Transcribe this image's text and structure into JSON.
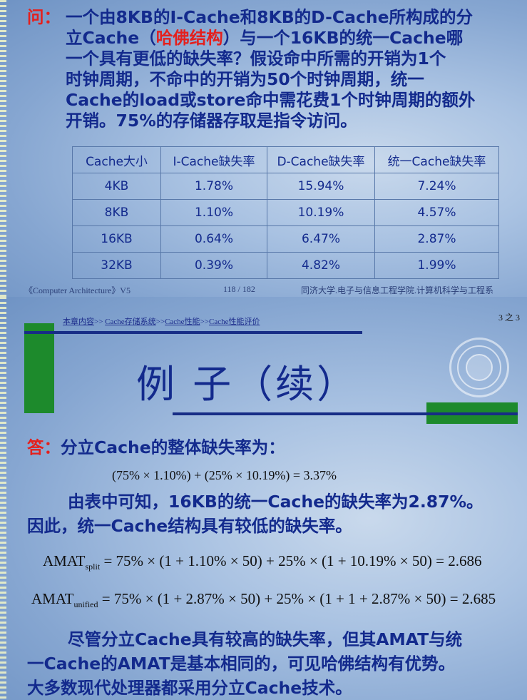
{
  "slide1": {
    "question_mark": "问：",
    "question_lines": [
      "一个由8KB的I-Cache和8KB的D-Cache所构成的分",
      "立Cache（",
      "哈佛结构",
      "）与一个16KB的统一Cache哪",
      "一个具有更低的缺失率？假设命中所需的开销为1个",
      "时钟周期，不命中的开销为50个时钟周期，统一",
      "Cache的load或store命中需花费1个时钟周期的额外",
      "开销。75%的存储器存取是指令访问。"
    ],
    "table": {
      "headers": [
        "Cache大小",
        "I-Cache缺失率",
        "D-Cache缺失率",
        "统一Cache缺失率"
      ],
      "rows": [
        [
          "4KB",
          "1.78%",
          "15.94%",
          "7.24%"
        ],
        [
          "8KB",
          "1.10%",
          "10.19%",
          "4.57%"
        ],
        [
          "16KB",
          "0.64%",
          "6.47%",
          "2.87%"
        ],
        [
          "32KB",
          "0.39%",
          "4.82%",
          "1.99%"
        ]
      ]
    },
    "footer": {
      "left": "《Computer Architecture》V5",
      "center": "118 / 182",
      "right": "同济大学.电子与信息工程学院.计算机科学与工程系"
    }
  },
  "slide2": {
    "breadcrumb": [
      "本章内容",
      ">> ",
      "Cache存储系统",
      ">>",
      "Cache性能",
      ">>",
      "Cache性能评价"
    ],
    "page_indicator": "3 之 3",
    "title": "例 子（续）",
    "answer_mark": "答：",
    "answer_text": "分立Cache的整体缺失率为：",
    "eq1": "(75% × 1.10%) + (25% × 10.19%) = 3.37%",
    "para1_line1": "由表中可知，16KB的统一Cache的缺失率为2.87%。",
    "para1_line2": "因此，统一Cache结构具有较低的缺失率。",
    "eq2_lhs": "AMAT",
    "eq2_sub": "split",
    "eq2_rhs": " = 75% × (1 + 1.10% × 50) + 25% × (1 + 10.19% × 50) = 2.686",
    "eq3_lhs": "AMAT",
    "eq3_sub": "unified",
    "eq3_rhs": " = 75% × (1 + 2.87% × 50) + 25% × (1 + 1 + 2.87% × 50) = 2.685",
    "para2_line1": "尽管分立Cache具有较高的缺失率，但其AMAT与统",
    "para2_line2": "一Cache的AMAT是基本相同的，可见哈佛结构有优势。",
    "para2_line3": "大多数现代处理器都采用分立Cache技术。"
  },
  "colors": {
    "text_blue": "#132a8d",
    "accent_red": "#e4201d",
    "green": "#1d8a2c"
  }
}
